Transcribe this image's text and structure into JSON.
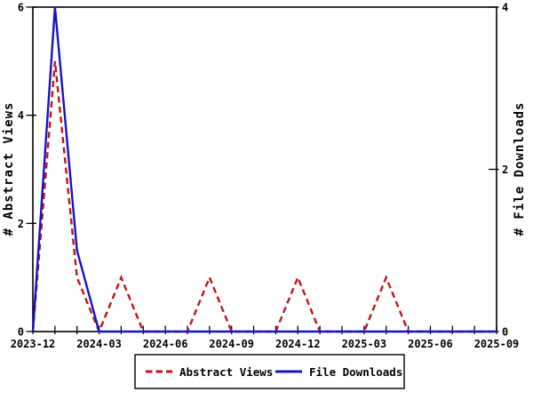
{
  "chart_data": {
    "type": "line",
    "title": "",
    "grid": false,
    "background": "#ffffff",
    "frame_color": "#000000",
    "x_categories": [
      "2023-12",
      "2024-01",
      "2024-02",
      "2024-03",
      "2024-04",
      "2024-05",
      "2024-06",
      "2024-07",
      "2024-08",
      "2024-09",
      "2024-10",
      "2024-11",
      "2024-12",
      "2025-01",
      "2025-02",
      "2025-03",
      "2025-04",
      "2025-05",
      "2025-06",
      "2025-07",
      "2025-08",
      "2025-09"
    ],
    "x_major_every": 3,
    "x_major_tick_labels": [
      "2023-12",
      "2024-03",
      "2024-06",
      "2024-09",
      "2024-12",
      "2025-03",
      "2025-06",
      "2025-09"
    ],
    "left_axis": {
      "label": "# Abstract Views",
      "min": 0,
      "max": 6,
      "ticks": [
        0,
        2,
        4,
        6
      ]
    },
    "right_axis": {
      "label": "# File Downloads",
      "min": 0,
      "max": 4,
      "ticks": [
        0,
        2,
        4
      ]
    },
    "series": [
      {
        "name": "Abstract Views",
        "axis": "left",
        "color": "#c41414",
        "style": "dashed",
        "values": [
          0,
          5,
          1,
          0,
          1,
          0,
          0,
          0,
          1,
          0,
          0,
          0,
          1,
          0,
          0,
          0,
          1,
          0,
          0,
          0,
          0,
          0
        ]
      },
      {
        "name": "File Downloads",
        "axis": "right",
        "color": "#1414c4",
        "style": "solid",
        "values": [
          0,
          4,
          1,
          0,
          0,
          0,
          0,
          0,
          0,
          0,
          0,
          0,
          0,
          0,
          0,
          0,
          0,
          0,
          0,
          0,
          0,
          0
        ]
      }
    ],
    "legend": {
      "position": "bottom-center",
      "entries": [
        "Abstract Views",
        "File Downloads"
      ]
    }
  }
}
